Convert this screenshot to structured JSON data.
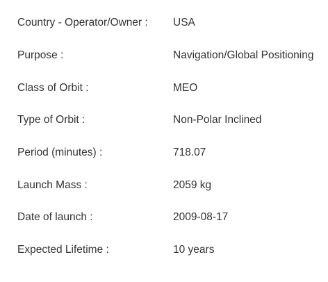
{
  "satellite_details": {
    "rows": [
      {
        "label": "Country - Operator/Owner :",
        "value": "USA"
      },
      {
        "label": "Purpose :",
        "value": "Navigation/Global Positioning"
      },
      {
        "label": "Class of Orbit :",
        "value": "MEO"
      },
      {
        "label": "Type of Orbit :",
        "value": "Non-Polar Inclined"
      },
      {
        "label": "Period (minutes) :",
        "value": "718.07"
      },
      {
        "label": "Launch Mass :",
        "value": "2059 kg"
      },
      {
        "label": "Date of launch :",
        "value": "2009-08-17"
      },
      {
        "label": "Expected Lifetime :",
        "value": "10 years"
      }
    ]
  }
}
